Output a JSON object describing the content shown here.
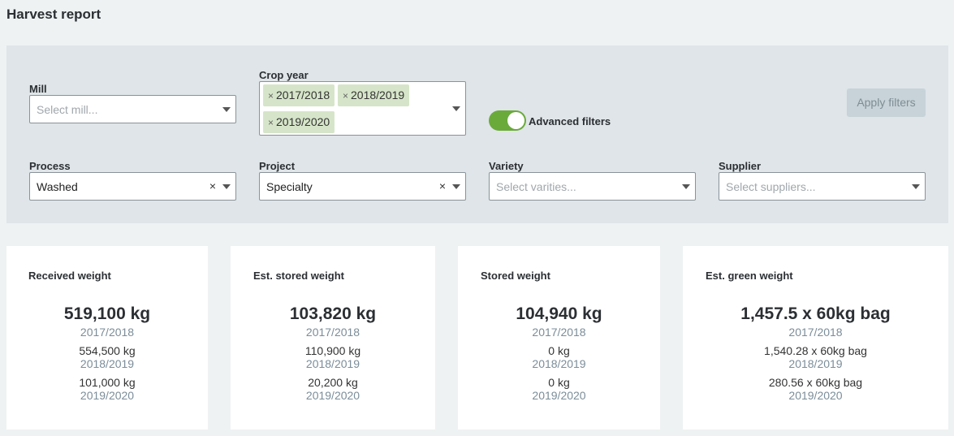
{
  "page": {
    "title": "Harvest report"
  },
  "filters": {
    "mill": {
      "label": "Mill",
      "placeholder": "Select mill..."
    },
    "crop_year": {
      "label": "Crop year",
      "chips": [
        "2017/2018",
        "2018/2019",
        "2019/2020"
      ]
    },
    "advanced": {
      "label": "Advanced filters",
      "enabled": true
    },
    "apply_label": "Apply filters",
    "process": {
      "label": "Process",
      "value": "Washed"
    },
    "project": {
      "label": "Project",
      "value": "Specialty"
    },
    "variety": {
      "label": "Variety",
      "placeholder": "Select varities..."
    },
    "supplier": {
      "label": "Supplier",
      "placeholder": "Select suppliers..."
    },
    "clear_symbol": "×",
    "chip_remove_symbol": "×"
  },
  "cards": [
    {
      "title": "Received weight",
      "main": "519,100 kg",
      "main_year": "2017/2018",
      "rows": [
        {
          "value": "554,500 kg",
          "year": "2018/2019"
        },
        {
          "value": "101,000 kg",
          "year": "2019/2020"
        }
      ]
    },
    {
      "title": "Est. stored weight",
      "main": "103,820 kg",
      "main_year": "2017/2018",
      "rows": [
        {
          "value": "110,900 kg",
          "year": "2018/2019"
        },
        {
          "value": "20,200 kg",
          "year": "2019/2020"
        }
      ]
    },
    {
      "title": "Stored weight",
      "main": "104,940 kg",
      "main_year": "2017/2018",
      "rows": [
        {
          "value": "0 kg",
          "year": "2018/2019"
        },
        {
          "value": "0 kg",
          "year": "2019/2020"
        }
      ]
    },
    {
      "title": "Est. green weight",
      "main": "1,457.5 x 60kg bag",
      "main_year": "2017/2018",
      "rows": [
        {
          "value": "1,540.28 x 60kg bag",
          "year": "2018/2019"
        },
        {
          "value": "280.56 x 60kg bag",
          "year": "2019/2020"
        }
      ]
    }
  ],
  "colors": {
    "accent_green": "#6aaa3a",
    "chip_bg": "#d6e5c9",
    "year_text": "#7b8d99"
  }
}
